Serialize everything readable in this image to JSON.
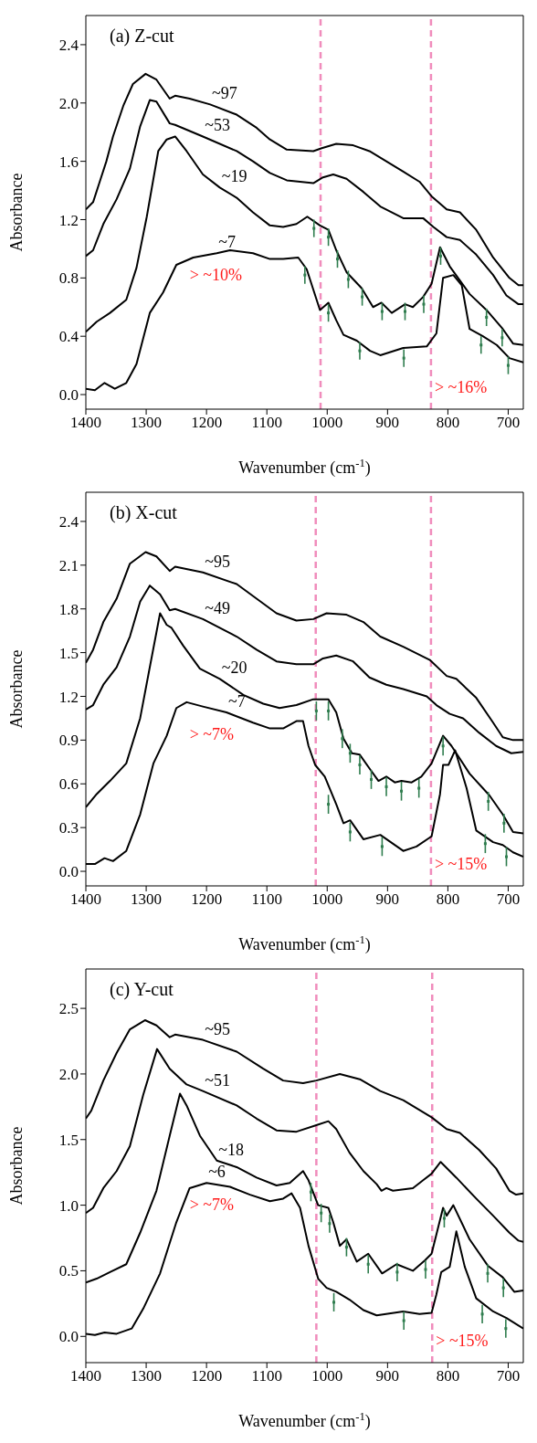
{
  "chart_data": [
    {
      "type": "line",
      "title": "(a) Z-cut",
      "xlabel": "Wavenumber (cm$^{-1}$)",
      "ylabel": "Absorbance",
      "xlim": [
        1400,
        675
      ],
      "xticks": [
        1400,
        1300,
        1200,
        1100,
        1000,
        900,
        800,
        700
      ],
      "ylim": [
        -0.1,
        2.6
      ],
      "yticks": [
        {
          "value": 0,
          "label": "0.0"
        },
        0.4,
        0.8,
        1.2,
        1.6,
        {
          "value": 2,
          "label": "2.0"
        },
        2.4
      ],
      "marker": "none",
      "series": [
        {
          "name": "~97",
          "color": "#000000",
          "x": [
            1400,
            1388,
            1377,
            1366,
            1355,
            1338,
            1322,
            1301,
            1283,
            1261,
            1252,
            1228,
            1194,
            1150,
            1117,
            1095,
            1067,
            1023,
            1009,
            985,
            957,
            930,
            902,
            874,
            847,
            827,
            802,
            780,
            753,
            725,
            698,
            683,
            675
          ],
          "values": [
            1.27,
            1.32,
            1.46,
            1.6,
            1.77,
            1.98,
            2.13,
            2.2,
            2.16,
            2.03,
            2.05,
            2.03,
            1.99,
            1.92,
            1.83,
            1.75,
            1.68,
            1.67,
            1.69,
            1.72,
            1.71,
            1.67,
            1.6,
            1.53,
            1.46,
            1.36,
            1.27,
            1.25,
            1.13,
            0.94,
            0.8,
            0.75,
            0.75
          ]
        },
        {
          "name": "~53",
          "color": "#000000",
          "x": [
            1400,
            1388,
            1371,
            1349,
            1327,
            1310,
            1294,
            1283,
            1261,
            1252,
            1206,
            1150,
            1123,
            1095,
            1067,
            1023,
            1007,
            990,
            968,
            940,
            912,
            874,
            841,
            824,
            802,
            780,
            753,
            725,
            703,
            683,
            675
          ],
          "values": [
            0.95,
            0.99,
            1.17,
            1.34,
            1.55,
            1.84,
            2.02,
            2.01,
            1.86,
            1.85,
            1.77,
            1.67,
            1.6,
            1.52,
            1.47,
            1.45,
            1.49,
            1.51,
            1.48,
            1.39,
            1.29,
            1.21,
            1.21,
            1.15,
            1.08,
            1.06,
            0.96,
            0.82,
            0.68,
            0.62,
            0.62
          ]
        },
        {
          "name": "~19",
          "color": "#000000",
          "x": [
            1400,
            1382,
            1360,
            1333,
            1316,
            1299,
            1280,
            1266,
            1252,
            1233,
            1206,
            1178,
            1150,
            1123,
            1095,
            1073,
            1051,
            1033,
            1012,
            998,
            985,
            968,
            943,
            924,
            910,
            893,
            871,
            858,
            841,
            827,
            813,
            797,
            764,
            736,
            709,
            692,
            675
          ],
          "values": [
            0.43,
            0.5,
            0.56,
            0.65,
            0.87,
            1.22,
            1.67,
            1.75,
            1.77,
            1.67,
            1.51,
            1.42,
            1.35,
            1.25,
            1.16,
            1.15,
            1.17,
            1.22,
            1.16,
            1.13,
            0.99,
            0.84,
            0.73,
            0.6,
            0.63,
            0.56,
            0.62,
            0.6,
            0.67,
            0.76,
            1.01,
            0.88,
            0.69,
            0.58,
            0.45,
            0.35,
            0.34
          ]
        },
        {
          "name": "~7",
          "color": "#000000",
          "x": [
            1400,
            1385,
            1369,
            1352,
            1333,
            1316,
            1294,
            1272,
            1250,
            1222,
            1183,
            1161,
            1123,
            1095,
            1073,
            1048,
            1034,
            1012,
            998,
            985,
            973,
            951,
            929,
            912,
            874,
            835,
            819,
            808,
            791,
            777,
            764,
            742,
            719,
            698,
            675
          ],
          "values": [
            0.04,
            0.03,
            0.08,
            0.04,
            0.08,
            0.21,
            0.56,
            0.7,
            0.89,
            0.94,
            0.97,
            0.99,
            0.97,
            0.93,
            0.93,
            0.94,
            0.86,
            0.58,
            0.63,
            0.51,
            0.41,
            0.37,
            0.3,
            0.27,
            0.32,
            0.33,
            0.42,
            0.8,
            0.82,
            0.75,
            0.45,
            0.4,
            0.34,
            0.25,
            0.22
          ]
        },
        {
          "type": "scatter",
          "marker": "square",
          "color": "#2f7d4e",
          "x": [
            1022,
            998,
            983,
            965,
            942,
            909,
            871,
            840,
            812,
            736,
            710,
            1037,
            998,
            946,
            873,
            745,
            700
          ],
          "values": [
            1.14,
            1.08,
            0.93,
            0.79,
            0.67,
            0.57,
            0.57,
            0.62,
            0.95,
            0.53,
            0.39,
            0.82,
            0.56,
            0.3,
            0.25,
            0.34,
            0.2
          ],
          "errors": [
            0.06,
            0.06,
            0.06,
            0.06,
            0.06,
            0.06,
            0.06,
            0.06,
            0.06,
            0.06,
            0.06,
            0.06,
            0.06,
            0.06,
            0.06,
            0.06,
            0.06
          ]
        }
      ],
      "ref_lines": [
        {
          "axis": "x",
          "value": 1011,
          "color": "#f08cbc",
          "line_style": "dashed"
        },
        {
          "axis": "x",
          "value": 828,
          "color": "#f08cbc",
          "line_style": "dashed"
        }
      ],
      "annotations": [
        "> ~10%",
        "> ~16%"
      ]
    },
    {
      "type": "line",
      "title": "(b) X-cut",
      "xlabel": "Wavenumber (cm$^{-1}$)",
      "ylabel": "Absorbance",
      "xlim": [
        1400,
        675
      ],
      "xticks": [
        1400,
        1300,
        1200,
        1100,
        1000,
        900,
        800,
        700
      ],
      "ylim": [
        -0.1,
        2.6
      ],
      "yticks": [
        {
          "value": 0,
          "label": "0.0"
        },
        0.3,
        0.6,
        0.9,
        1.2,
        1.5,
        1.8,
        2.1,
        2.4
      ],
      "marker": "none",
      "series": [
        {
          "name": "~95",
          "color": "#000000",
          "x": [
            1400,
            1388,
            1371,
            1349,
            1327,
            1301,
            1283,
            1261,
            1252,
            1206,
            1150,
            1117,
            1084,
            1051,
            1023,
            1001,
            968,
            940,
            912,
            874,
            830,
            802,
            786,
            753,
            725,
            709,
            692,
            675
          ],
          "values": [
            1.43,
            1.52,
            1.71,
            1.87,
            2.11,
            2.19,
            2.16,
            2.06,
            2.09,
            2.05,
            1.97,
            1.87,
            1.77,
            1.72,
            1.73,
            1.77,
            1.76,
            1.71,
            1.61,
            1.54,
            1.45,
            1.34,
            1.32,
            1.19,
            1.02,
            0.92,
            0.9,
            0.9
          ]
        },
        {
          "name": "~49",
          "color": "#000000",
          "x": [
            1400,
            1388,
            1371,
            1349,
            1327,
            1310,
            1294,
            1277,
            1261,
            1252,
            1206,
            1150,
            1117,
            1084,
            1051,
            1023,
            1007,
            985,
            957,
            930,
            902,
            874,
            835,
            819,
            797,
            775,
            748,
            720,
            695,
            675
          ],
          "values": [
            1.11,
            1.14,
            1.28,
            1.4,
            1.61,
            1.85,
            1.96,
            1.9,
            1.79,
            1.8,
            1.73,
            1.61,
            1.52,
            1.44,
            1.42,
            1.42,
            1.46,
            1.48,
            1.44,
            1.33,
            1.28,
            1.25,
            1.2,
            1.14,
            1.08,
            1.05,
            0.95,
            0.86,
            0.81,
            0.82
          ]
        },
        {
          "name": "~20",
          "color": "#000000",
          "x": [
            1400,
            1382,
            1360,
            1333,
            1310,
            1294,
            1277,
            1266,
            1258,
            1239,
            1211,
            1178,
            1139,
            1106,
            1079,
            1051,
            1023,
            998,
            985,
            973,
            959,
            946,
            929,
            915,
            902,
            888,
            877,
            860,
            844,
            827,
            808,
            794,
            764,
            731,
            709,
            692,
            675
          ],
          "values": [
            0.44,
            0.53,
            0.62,
            0.74,
            1.05,
            1.4,
            1.77,
            1.69,
            1.67,
            1.55,
            1.39,
            1.32,
            1.21,
            1.15,
            1.12,
            1.14,
            1.18,
            1.18,
            1.09,
            0.91,
            0.81,
            0.8,
            0.7,
            0.62,
            0.65,
            0.61,
            0.62,
            0.61,
            0.65,
            0.74,
            0.93,
            0.86,
            0.67,
            0.52,
            0.39,
            0.27,
            0.26
          ]
        },
        {
          "name": "~7",
          "color": "#000000",
          "x": [
            1400,
            1385,
            1369,
            1355,
            1333,
            1310,
            1288,
            1266,
            1250,
            1233,
            1206,
            1167,
            1123,
            1095,
            1073,
            1051,
            1040,
            1031,
            1020,
            1004,
            985,
            973,
            962,
            940,
            912,
            874,
            852,
            827,
            813,
            808,
            799,
            788,
            769,
            753,
            725,
            709,
            692,
            675
          ],
          "values": [
            0.05,
            0.05,
            0.09,
            0.07,
            0.14,
            0.39,
            0.74,
            0.93,
            1.12,
            1.16,
            1.13,
            1.09,
            1.02,
            0.98,
            0.98,
            1.03,
            1.03,
            0.86,
            0.73,
            0.65,
            0.46,
            0.33,
            0.35,
            0.22,
            0.25,
            0.14,
            0.17,
            0.24,
            0.53,
            0.73,
            0.73,
            0.83,
            0.57,
            0.28,
            0.2,
            0.18,
            0.13,
            0.1
          ]
        },
        {
          "type": "scatter",
          "marker": "square",
          "color": "#2f7d4e",
          "x": [
            1018,
            998,
            975,
            962,
            946,
            927,
            902,
            877,
            848,
            808,
            733,
            707,
            998,
            962,
            909,
            738,
            703
          ],
          "values": [
            1.1,
            1.1,
            0.91,
            0.81,
            0.73,
            0.63,
            0.58,
            0.55,
            0.57,
            0.86,
            0.48,
            0.33,
            0.46,
            0.27,
            0.17,
            0.19,
            0.1
          ],
          "errors": [
            0.065,
            0.065,
            0.065,
            0.065,
            0.065,
            0.065,
            0.065,
            0.065,
            0.065,
            0.065,
            0.065,
            0.065,
            0.065,
            0.065,
            0.065,
            0.065,
            0.065
          ]
        }
      ],
      "ref_lines": [
        {
          "axis": "x",
          "value": 1019,
          "color": "#f08cbc",
          "line_style": "dashed"
        },
        {
          "axis": "x",
          "value": 828,
          "color": "#f08cbc",
          "line_style": "dashed"
        }
      ],
      "annotations": [
        "> ~7%",
        "> ~15%"
      ]
    },
    {
      "type": "line",
      "title": "(c) Y-cut",
      "xlabel": "Wavenumber (cm$^{-1}$)",
      "ylabel": "Absorbance",
      "xlim": [
        1400,
        675
      ],
      "xticks": [
        1400,
        1300,
        1200,
        1100,
        1000,
        900,
        800,
        700
      ],
      "ylim": [
        -0.2,
        2.8
      ],
      "yticks": [
        {
          "value": 0,
          "label": "0.0"
        },
        0.5,
        {
          "value": 1,
          "label": "1.0"
        },
        1.5,
        {
          "value": 2,
          "label": "2.0"
        },
        2.5
      ],
      "marker": "none",
      "series": [
        {
          "name": "~95",
          "color": "#000000",
          "x": [
            1400,
            1391,
            1371,
            1349,
            1327,
            1302,
            1283,
            1261,
            1252,
            1206,
            1150,
            1106,
            1073,
            1040,
            1018,
            979,
            946,
            912,
            874,
            827,
            802,
            780,
            748,
            720,
            698,
            687,
            675
          ],
          "values": [
            1.66,
            1.72,
            1.95,
            2.16,
            2.34,
            2.41,
            2.37,
            2.28,
            2.3,
            2.26,
            2.17,
            2.04,
            1.95,
            1.93,
            1.95,
            2.0,
            1.96,
            1.87,
            1.8,
            1.67,
            1.58,
            1.55,
            1.42,
            1.28,
            1.11,
            1.08,
            1.09
          ]
        },
        {
          "name": "~51",
          "color": "#000000",
          "x": [
            1400,
            1388,
            1371,
            1349,
            1327,
            1305,
            1282,
            1261,
            1233,
            1206,
            1150,
            1117,
            1084,
            1051,
            1018,
            998,
            985,
            963,
            940,
            918,
            910,
            902,
            891,
            858,
            841,
            827,
            812,
            786,
            753,
            725,
            698,
            683,
            675
          ],
          "values": [
            0.94,
            0.98,
            1.13,
            1.26,
            1.45,
            1.84,
            2.19,
            2.04,
            1.92,
            1.87,
            1.76,
            1.66,
            1.57,
            1.56,
            1.61,
            1.64,
            1.58,
            1.4,
            1.26,
            1.16,
            1.11,
            1.13,
            1.11,
            1.13,
            1.19,
            1.24,
            1.33,
            1.21,
            1.05,
            0.92,
            0.79,
            0.73,
            0.72
          ]
        },
        {
          "name": "~18",
          "color": "#000000",
          "x": [
            1400,
            1382,
            1360,
            1333,
            1310,
            1283,
            1261,
            1244,
            1233,
            1211,
            1183,
            1150,
            1117,
            1084,
            1062,
            1040,
            1031,
            1015,
            998,
            990,
            979,
            968,
            951,
            932,
            909,
            885,
            858,
            838,
            827,
            808,
            802,
            791,
            764,
            734,
            709,
            690,
            675
          ],
          "values": [
            0.41,
            0.44,
            0.49,
            0.55,
            0.79,
            1.11,
            1.53,
            1.85,
            1.76,
            1.53,
            1.34,
            1.29,
            1.21,
            1.15,
            1.17,
            1.26,
            1.19,
            1.0,
            0.98,
            0.87,
            0.69,
            0.74,
            0.57,
            0.63,
            0.48,
            0.55,
            0.5,
            0.58,
            0.63,
            0.98,
            0.92,
            1.0,
            0.74,
            0.54,
            0.45,
            0.34,
            0.35
          ]
        },
        {
          "name": "~6",
          "color": "#000000",
          "x": [
            1400,
            1385,
            1369,
            1349,
            1324,
            1305,
            1277,
            1250,
            1228,
            1200,
            1161,
            1128,
            1095,
            1073,
            1059,
            1045,
            1031,
            1015,
            1001,
            985,
            963,
            940,
            918,
            874,
            847,
            827,
            819,
            811,
            797,
            786,
            772,
            753,
            725,
            703,
            675
          ],
          "values": [
            0.02,
            0.01,
            0.03,
            0.02,
            0.06,
            0.21,
            0.48,
            0.87,
            1.13,
            1.17,
            1.14,
            1.08,
            1.03,
            1.05,
            1.09,
            0.98,
            0.69,
            0.44,
            0.37,
            0.34,
            0.28,
            0.2,
            0.16,
            0.19,
            0.17,
            0.18,
            0.32,
            0.49,
            0.53,
            0.8,
            0.53,
            0.29,
            0.19,
            0.14,
            0.06
          ]
        },
        {
          "type": "scatter",
          "marker": "square",
          "color": "#2f7d4e",
          "x": [
            1027,
            1010,
            996,
            968,
            932,
            884,
            837,
            806,
            734,
            708,
            989,
            873,
            743,
            704
          ],
          "values": [
            1.1,
            0.94,
            0.86,
            0.68,
            0.55,
            0.49,
            0.51,
            0.9,
            0.48,
            0.37,
            0.26,
            0.12,
            0.17,
            0.06
          ],
          "errors": [
            0.07,
            0.07,
            0.07,
            0.07,
            0.07,
            0.07,
            0.07,
            0.07,
            0.07,
            0.07,
            0.07,
            0.07,
            0.07,
            0.07
          ]
        }
      ],
      "ref_lines": [
        {
          "axis": "x",
          "value": 1018,
          "color": "#f08cbc",
          "line_style": "dashed"
        },
        {
          "axis": "x",
          "value": 826,
          "color": "#f08cbc",
          "line_style": "dashed"
        }
      ],
      "annotations": [
        "> ~7%",
        "> ~15%"
      ]
    }
  ]
}
